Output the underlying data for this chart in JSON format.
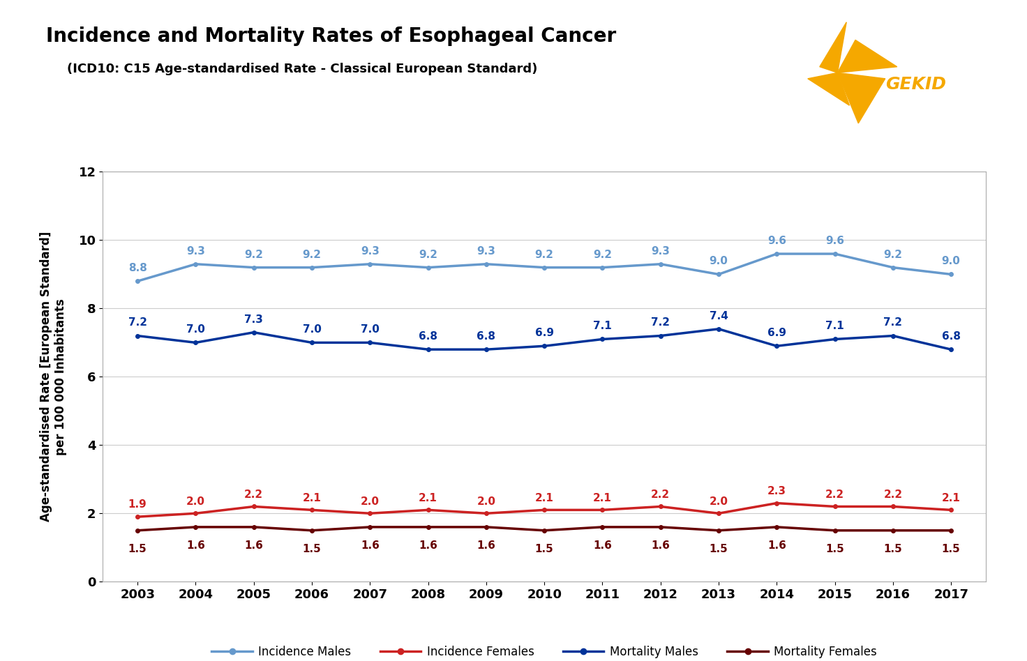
{
  "title": "Incidence and Mortality Rates of Esophageal Cancer",
  "subtitle": "(ICD10: C15 Age-standardised Rate - Classical European Standard)",
  "ylabel": "Age-standardised Rate [European Standard]\nper 100 000 Inhabitants",
  "years": [
    2003,
    2004,
    2005,
    2006,
    2007,
    2008,
    2009,
    2010,
    2011,
    2012,
    2013,
    2014,
    2015,
    2016,
    2017
  ],
  "incidence_males": [
    8.8,
    9.3,
    9.2,
    9.2,
    9.3,
    9.2,
    9.3,
    9.2,
    9.2,
    9.3,
    9.0,
    9.6,
    9.6,
    9.2,
    9.0
  ],
  "incidence_females": [
    1.9,
    2.0,
    2.2,
    2.1,
    2.0,
    2.1,
    2.0,
    2.1,
    2.1,
    2.2,
    2.0,
    2.3,
    2.2,
    2.2,
    2.1
  ],
  "mortality_males": [
    7.2,
    7.0,
    7.3,
    7.0,
    7.0,
    6.8,
    6.8,
    6.9,
    7.1,
    7.2,
    7.4,
    6.9,
    7.1,
    7.2,
    6.8
  ],
  "mortality_females": [
    1.5,
    1.6,
    1.6,
    1.5,
    1.6,
    1.6,
    1.6,
    1.5,
    1.6,
    1.6,
    1.5,
    1.6,
    1.5,
    1.5,
    1.5
  ],
  "color_incidence_males": "#6699CC",
  "color_incidence_females": "#CC2222",
  "color_mortality_males": "#003399",
  "color_mortality_females": "#660000",
  "logo_color": "#F5A800",
  "ylim": [
    0,
    12
  ],
  "yticks": [
    0,
    2,
    4,
    6,
    8,
    10,
    12
  ],
  "background_color": "#FFFFFF",
  "plot_bg_color": "#FFFFFF",
  "grid_color": "#CCCCCC",
  "title_fontsize": 20,
  "subtitle_fontsize": 13,
  "label_fontsize": 12,
  "tick_fontsize": 13,
  "annotation_fontsize": 11,
  "legend_fontsize": 12,
  "linewidth": 2.5
}
